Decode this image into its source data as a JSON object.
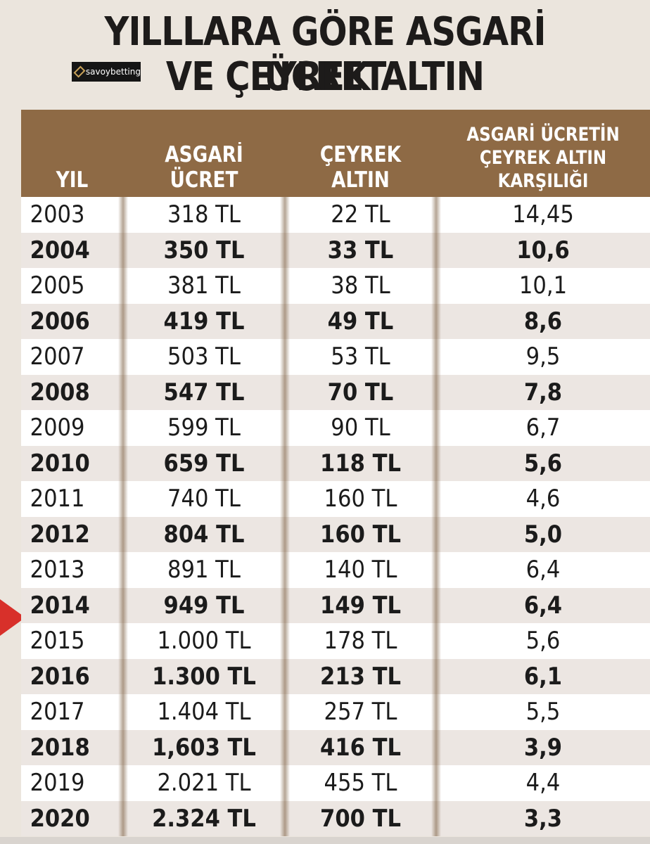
{
  "title": {
    "line1_a": "YILLLARA GÖRE ",
    "line1_b": "ASGARİ ÜCRET",
    "line2": "VE ÇEYREK ALTIN"
  },
  "logo": {
    "text": "savoybetting"
  },
  "table": {
    "headers": [
      "YIL",
      "ASGARİ\nÜCRET",
      "ÇEYREK\nALTIN",
      "ASGARİ ÜCRETİN\nÇEYREK ALTIN\nKARŞILIĞI"
    ],
    "rows": [
      [
        "2003",
        "318 TL",
        "22 TL",
        "14,45"
      ],
      [
        "2004",
        "350 TL",
        "33 TL",
        "10,6"
      ],
      [
        "2005",
        "381 TL",
        "38 TL",
        "10,1"
      ],
      [
        "2006",
        "419 TL",
        "49 TL",
        "8,6"
      ],
      [
        "2007",
        "503 TL",
        "53 TL",
        "9,5"
      ],
      [
        "2008",
        "547 TL",
        "70 TL",
        "7,8"
      ],
      [
        "2009",
        "599 TL",
        "90 TL",
        "6,7"
      ],
      [
        "2010",
        "659 TL",
        "118 TL",
        "5,6"
      ],
      [
        "2011",
        "740 TL",
        "160 TL",
        "4,6"
      ],
      [
        "2012",
        "804 TL",
        "160 TL",
        "5,0"
      ],
      [
        "2013",
        "891 TL",
        "140 TL",
        "6,4"
      ],
      [
        "2014",
        "949 TL",
        "149 TL",
        "6,4"
      ],
      [
        "2015",
        "1.000 TL",
        "178 TL",
        "5,6"
      ],
      [
        "2016",
        "1.300 TL",
        "213 TL",
        "6,1"
      ],
      [
        "2017",
        "1.404 TL",
        "257 TL",
        "5,5"
      ],
      [
        "2018",
        "1,603 TL",
        "416 TL",
        "3,9"
      ],
      [
        "2019",
        "2.021 TL",
        "455 TL",
        "4,4"
      ],
      [
        "2020",
        "2.324 TL",
        "700 TL",
        "3,3"
      ]
    ]
  },
  "colors": {
    "header_bg": "#8e6a45",
    "arrow": "#d8302a"
  }
}
